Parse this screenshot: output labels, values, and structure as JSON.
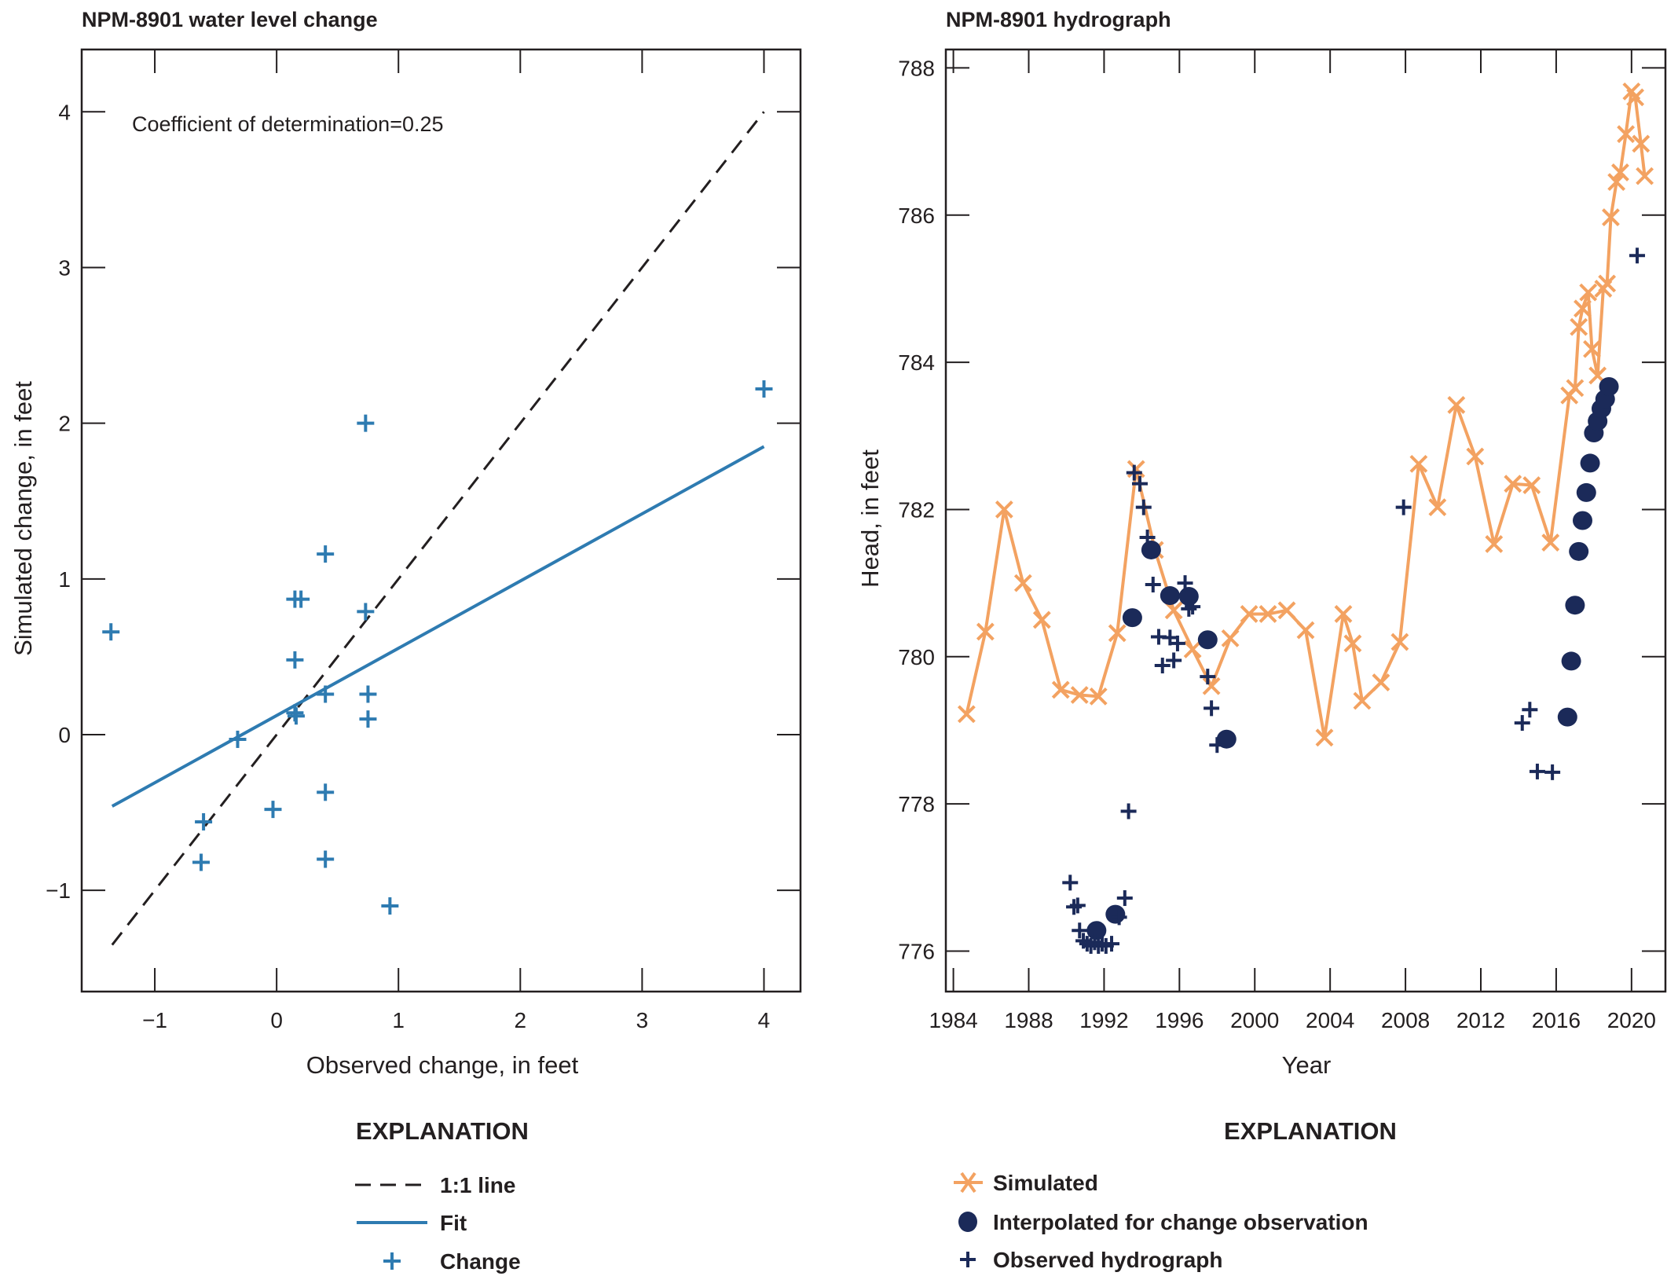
{
  "chart_data": [
    {
      "type": "scatter",
      "title": "NPM-8901 water level change",
      "xlabel": "Observed change, in feet",
      "ylabel": "Simulated change, in feet",
      "xlim": [
        -1.6,
        4.3
      ],
      "ylim": [
        -1.65,
        4.4
      ],
      "xticks": [
        "-1",
        "0",
        "1",
        "2",
        "3",
        "4"
      ],
      "xtick_values": [
        -1,
        0,
        1,
        2,
        3,
        4
      ],
      "yticks": [
        "-1",
        "0",
        "1",
        "2",
        "3",
        "4"
      ],
      "ytick_values": [
        -1,
        0,
        1,
        2,
        3,
        4
      ],
      "grid": false,
      "annotation": "Coefficient of determination=0.25",
      "colors": {
        "change": "#2e7bb1",
        "fit": "#2e7bb1",
        "one_to_one": "#231f20"
      },
      "series": [
        {
          "name": "Change",
          "kind": "points",
          "points": [
            [
              -1.36,
              0.66
            ],
            [
              0.73,
              2.0
            ],
            [
              4.0,
              2.22
            ],
            [
              0.4,
              1.16
            ],
            [
              0.15,
              0.87
            ],
            [
              0.2,
              0.87
            ],
            [
              0.73,
              0.79
            ],
            [
              0.15,
              0.48
            ],
            [
              0.4,
              0.26
            ],
            [
              0.75,
              0.26
            ],
            [
              0.15,
              0.14
            ],
            [
              0.16,
              0.12
            ],
            [
              0.75,
              0.1
            ],
            [
              -0.32,
              -0.03
            ],
            [
              0.4,
              -0.37
            ],
            [
              -0.03,
              -0.48
            ],
            [
              -0.6,
              -0.56
            ],
            [
              -0.62,
              -0.82
            ],
            [
              0.4,
              -0.8
            ],
            [
              0.93,
              -1.1
            ]
          ]
        },
        {
          "name": "Fit",
          "kind": "line",
          "points": [
            [
              -1.35,
              -0.46
            ],
            [
              4.0,
              1.85
            ]
          ]
        },
        {
          "name": "1:1 line",
          "kind": "dashed-line",
          "points": [
            [
              -1.35,
              -1.35
            ],
            [
              4.0,
              4.0
            ]
          ]
        }
      ],
      "legend": {
        "title": "EXPLANATION",
        "placement": "bottom",
        "entries": [
          "1:1 line",
          "Fit",
          "Change"
        ]
      }
    },
    {
      "type": "line",
      "title": "NPM-8901 hydrograph",
      "xlabel": "Year",
      "ylabel": "Head, in feet",
      "xlim": [
        1983.6,
        2021.8
      ],
      "ylim": [
        775.45,
        788.25
      ],
      "xticks": [
        "1984",
        "1988",
        "1992",
        "1996",
        "2000",
        "2004",
        "2008",
        "2012",
        "2016",
        "2020"
      ],
      "xtick_values": [
        1984,
        1988,
        1992,
        1996,
        2000,
        2004,
        2008,
        2012,
        2016,
        2020
      ],
      "yticks": [
        "776",
        "778",
        "780",
        "782",
        "784",
        "786",
        "788"
      ],
      "ytick_values": [
        776,
        778,
        780,
        782,
        784,
        786,
        788
      ],
      "grid": false,
      "colors": {
        "simulated": "#f3a261",
        "interpolated": "#1b2a59",
        "observed": "#1b2a59"
      },
      "series": [
        {
          "name": "Simulated",
          "kind": "line-x-markers",
          "points": [
            [
              1984.7,
              779.22
            ],
            [
              1985.7,
              780.34
            ],
            [
              1986.7,
              782.0
            ],
            [
              1987.7,
              781.0
            ],
            [
              1988.7,
              780.5
            ],
            [
              1989.7,
              779.55
            ],
            [
              1990.7,
              779.48
            ],
            [
              1991.7,
              779.46
            ],
            [
              1992.7,
              780.32
            ],
            [
              1993.7,
              782.55
            ],
            [
              1994.7,
              781.45
            ],
            [
              1995.7,
              780.63
            ],
            [
              1996.7,
              780.1
            ],
            [
              1997.7,
              779.6
            ],
            [
              1998.7,
              780.25
            ],
            [
              1999.7,
              780.58
            ],
            [
              2000.7,
              780.58
            ],
            [
              2001.7,
              780.63
            ],
            [
              2002.7,
              780.36
            ],
            [
              2003.7,
              778.9
            ],
            [
              2004.7,
              780.58
            ],
            [
              2005.2,
              780.18
            ],
            [
              2005.7,
              779.4
            ],
            [
              2006.7,
              779.65
            ],
            [
              2007.7,
              780.2
            ],
            [
              2008.7,
              782.62
            ],
            [
              2009.7,
              782.03
            ],
            [
              2010.7,
              783.42
            ],
            [
              2011.7,
              782.72
            ],
            [
              2012.7,
              781.53
            ],
            [
              2013.7,
              782.35
            ],
            [
              2014.7,
              782.33
            ],
            [
              2015.7,
              781.55
            ],
            [
              2016.7,
              783.55
            ],
            [
              2017.0,
              783.65
            ],
            [
              2017.2,
              784.48
            ],
            [
              2017.4,
              784.73
            ],
            [
              2017.7,
              784.95
            ],
            [
              2017.9,
              784.18
            ],
            [
              2018.2,
              783.82
            ],
            [
              2018.5,
              785.0
            ],
            [
              2018.7,
              785.07
            ],
            [
              2018.9,
              785.97
            ],
            [
              2019.2,
              786.45
            ],
            [
              2019.4,
              786.58
            ],
            [
              2019.7,
              787.1
            ],
            [
              2020.0,
              787.68
            ],
            [
              2020.2,
              787.6
            ],
            [
              2020.5,
              786.97
            ],
            [
              2020.7,
              786.53
            ]
          ]
        },
        {
          "name": "Interpolated for change observation",
          "kind": "filled-circles",
          "points": [
            [
              1991.6,
              776.28
            ],
            [
              1992.6,
              776.5
            ],
            [
              1993.5,
              780.53
            ],
            [
              1994.5,
              781.45
            ],
            [
              1995.5,
              780.83
            ],
            [
              1996.5,
              780.82
            ],
            [
              1997.5,
              780.23
            ],
            [
              1998.5,
              778.88
            ],
            [
              2016.6,
              779.18
            ],
            [
              2016.8,
              779.94
            ],
            [
              2017.0,
              780.7
            ],
            [
              2017.2,
              781.43
            ],
            [
              2017.4,
              781.85
            ],
            [
              2017.6,
              782.23
            ],
            [
              2017.8,
              782.63
            ],
            [
              2018.0,
              783.04
            ],
            [
              2018.2,
              783.2
            ],
            [
              2018.4,
              783.37
            ],
            [
              2018.6,
              783.5
            ],
            [
              2018.8,
              783.67
            ]
          ]
        },
        {
          "name": "Observed hydrograph",
          "kind": "plus-markers",
          "points": [
            [
              1990.2,
              776.93
            ],
            [
              1990.4,
              776.6
            ],
            [
              1990.6,
              776.62
            ],
            [
              1990.7,
              776.28
            ],
            [
              1990.9,
              776.14
            ],
            [
              1991.1,
              776.1
            ],
            [
              1991.3,
              776.07
            ],
            [
              1991.5,
              776.12
            ],
            [
              1991.7,
              776.07
            ],
            [
              1991.9,
              776.1
            ],
            [
              1992.1,
              776.07
            ],
            [
              1992.4,
              776.1
            ],
            [
              1992.8,
              776.46
            ],
            [
              1993.1,
              776.72
            ],
            [
              1993.3,
              777.9
            ],
            [
              1993.6,
              782.5
            ],
            [
              1993.9,
              782.35
            ],
            [
              1994.1,
              782.03
            ],
            [
              1994.3,
              781.62
            ],
            [
              1994.6,
              780.98
            ],
            [
              1994.9,
              780.27
            ],
            [
              1995.1,
              779.88
            ],
            [
              1995.5,
              780.26
            ],
            [
              1995.7,
              779.95
            ],
            [
              1995.9,
              780.18
            ],
            [
              1996.3,
              781.0
            ],
            [
              1996.5,
              780.65
            ],
            [
              1996.7,
              780.68
            ],
            [
              1997.5,
              779.73
            ],
            [
              1997.7,
              779.3
            ],
            [
              1998.0,
              778.8
            ],
            [
              2007.9,
              782.03
            ],
            [
              2014.2,
              779.1
            ],
            [
              2014.6,
              779.28
            ],
            [
              2015.0,
              778.44
            ],
            [
              2015.8,
              778.43
            ],
            [
              2020.3,
              785.45
            ]
          ]
        }
      ],
      "legend": {
        "title": "EXPLANATION",
        "placement": "bottom",
        "entries": [
          "Simulated",
          "Interpolated for change observation",
          "Observed hydrograph"
        ]
      }
    }
  ]
}
